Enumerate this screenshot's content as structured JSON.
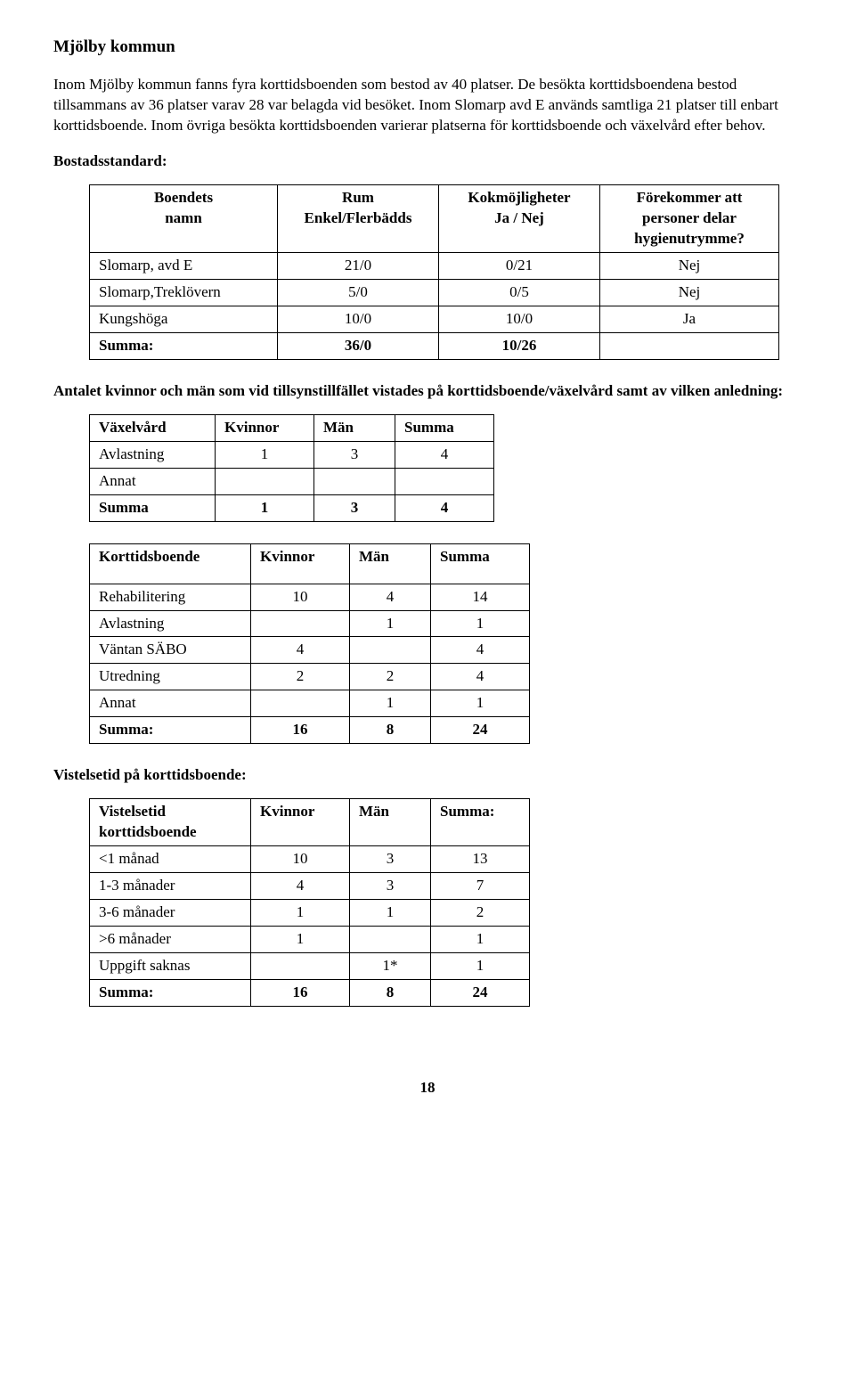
{
  "title": "Mjölby kommun",
  "intro": "Inom Mjölby kommun fanns fyra korttidsboenden som bestod av 40 platser. De besökta korttidsboendena bestod tillsammans av 36 platser varav 28 var belagda vid besöket. Inom Slomarp avd E används samtliga 21 platser till enbart korttidsboende. Inom övriga besökta korttidsboenden varierar platserna för korttidsboende och växelvård efter behov.",
  "bostads_label": "Bostadsstandard:",
  "t1": {
    "headers": [
      "Boendets\nnamn",
      "Rum\nEnkel/Flerbädds",
      "Kokmöjligheter\nJa / Nej",
      "Förekommer att personer delar hygienutrymme?"
    ],
    "rows": [
      [
        "Slomarp, avd E",
        "21/0",
        "0/21",
        "Nej"
      ],
      [
        "Slomarp,Treklövern",
        "5/0",
        "0/5",
        "Nej"
      ],
      [
        "Kungshöga",
        "10/0",
        "10/0",
        "Ja"
      ]
    ],
    "sum": [
      "Summa:",
      "36/0",
      "10/26",
      ""
    ]
  },
  "antal_label": "Antalet kvinnor och män som vid tillsynstillfället vistades på korttidsboende/växelvård samt av vilken anledning:",
  "t2": {
    "headers": [
      "Växelvård",
      "Kvinnor",
      "Män",
      "Summa"
    ],
    "rows": [
      [
        "Avlastning",
        "1",
        "3",
        "4"
      ],
      [
        "Annat",
        "",
        "",
        ""
      ]
    ],
    "sum": [
      "Summa",
      "1",
      "3",
      "4"
    ]
  },
  "t3": {
    "headers": [
      "Korttidsboende",
      "Kvinnor",
      "Män",
      "Summa"
    ],
    "rows": [
      [
        "Rehabilitering",
        "10",
        "4",
        "14"
      ],
      [
        "Avlastning",
        "",
        "1",
        "1"
      ],
      [
        "Väntan SÄBO",
        "4",
        "",
        "4"
      ],
      [
        "Utredning",
        "2",
        "2",
        "4"
      ],
      [
        "Annat",
        "",
        "1",
        "1"
      ]
    ],
    "sum": [
      "Summa:",
      "16",
      "8",
      "24"
    ]
  },
  "vist_label": "Vistelsetid på korttidsboende:",
  "t4": {
    "headers": [
      "Vistelsetid korttidsboende",
      "Kvinnor",
      "Män",
      "Summa:"
    ],
    "rows": [
      [
        "<1 månad",
        "10",
        "3",
        "13"
      ],
      [
        "1-3 månader",
        "4",
        "3",
        "7"
      ],
      [
        "3-6 månader",
        "1",
        "1",
        "2"
      ],
      [
        ">6 månader",
        "1",
        "",
        "1"
      ],
      [
        "Uppgift saknas",
        "",
        "1*",
        "1"
      ]
    ],
    "sum": [
      "Summa:",
      "16",
      "8",
      "24"
    ]
  },
  "page_number": "18",
  "col_widths": {
    "t1": [
      190,
      160,
      160,
      180
    ],
    "t2": [
      120,
      90,
      70,
      90
    ],
    "t3": [
      160,
      90,
      70,
      90
    ],
    "t4": [
      160,
      90,
      70,
      90
    ]
  }
}
